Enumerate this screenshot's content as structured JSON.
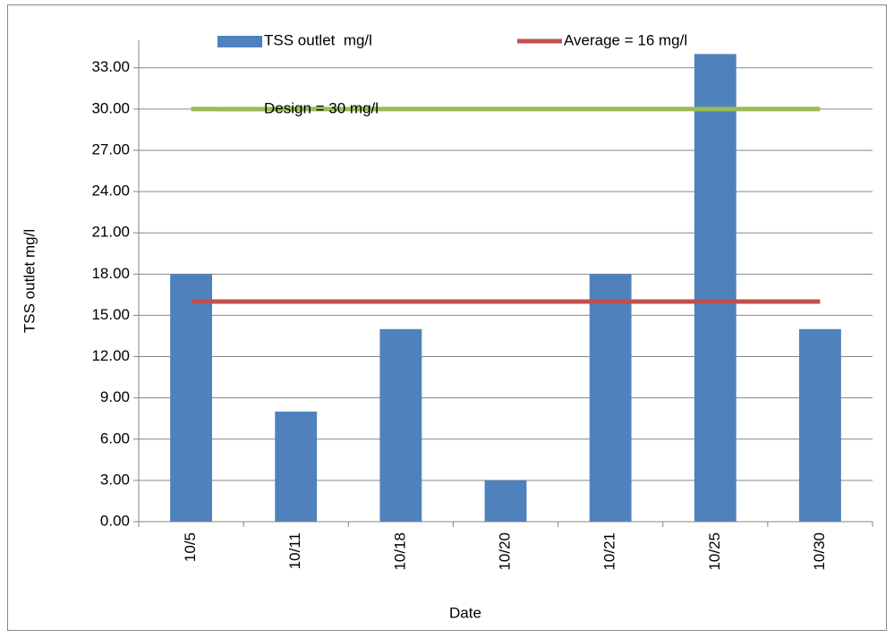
{
  "chart_data": {
    "type": "bar",
    "xlabel": "Date",
    "ylabel": "TSS outlet mg/l",
    "categories": [
      "10/5",
      "10/11",
      "10/18",
      "10/20",
      "10/21",
      "10/25",
      "10/30"
    ],
    "series": [
      {
        "name": "TSS outlet  mg/l",
        "type": "bar",
        "color": "#4f81bd",
        "values": [
          18,
          8,
          14,
          3,
          18,
          34,
          14
        ]
      },
      {
        "name": "Average = 16 mg/l",
        "type": "line",
        "color": "#c0504d",
        "values": [
          16,
          16,
          16,
          16,
          16,
          16,
          16
        ]
      },
      {
        "name": "Design = 30 mg/l",
        "type": "line",
        "color": "#9bbb59",
        "values": [
          30,
          30,
          30,
          30,
          30,
          30,
          30
        ]
      }
    ],
    "ylim": [
      0,
      35
    ],
    "yticks": [
      {
        "value": 0,
        "label": "0.00"
      },
      {
        "value": 3,
        "label": "3.00"
      },
      {
        "value": 6,
        "label": "6.00"
      },
      {
        "value": 9,
        "label": "9.00"
      },
      {
        "value": 12,
        "label": "12.00"
      },
      {
        "value": 15,
        "label": "15.00"
      },
      {
        "value": 18,
        "label": "18.00"
      },
      {
        "value": 21,
        "label": "21.00"
      },
      {
        "value": 24,
        "label": "24.00"
      },
      {
        "value": 27,
        "label": "27.00"
      },
      {
        "value": 30,
        "label": "30.00"
      },
      {
        "value": 33,
        "label": "33.00"
      }
    ],
    "grid": true
  }
}
